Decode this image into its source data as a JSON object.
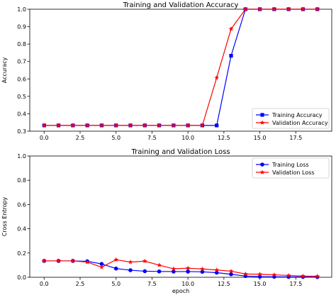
{
  "chart_data": [
    {
      "type": "line",
      "title": "Training and Validation Accuracy",
      "xlabel": "",
      "ylabel": "Accuracy",
      "xlim": [
        -1,
        20
      ],
      "ylim": [
        0.3,
        1.0
      ],
      "xticks": [
        0.0,
        2.5,
        5.0,
        7.5,
        10.0,
        12.5,
        15.0,
        17.5
      ],
      "xtick_labels": [
        "0.0",
        "2.5",
        "5.0",
        "7.5",
        "10.0",
        "12.5",
        "15.0",
        "17.5"
      ],
      "yticks": [
        0.3,
        0.4,
        0.5,
        0.6,
        0.7,
        0.8,
        0.9,
        1.0
      ],
      "ytick_labels": [
        "0.3",
        "0.4",
        "0.5",
        "0.6",
        "0.7",
        "0.8",
        "0.9",
        "1.0"
      ],
      "legend_position": "lower-right",
      "grid": false,
      "x": [
        0,
        1,
        2,
        3,
        4,
        5,
        6,
        7,
        8,
        9,
        10,
        11,
        12,
        13,
        14,
        15,
        16,
        17,
        18,
        19
      ],
      "series": [
        {
          "name": "Training Accuracy",
          "color": "#0000ff",
          "marker": "square",
          "values": [
            0.333,
            0.333,
            0.333,
            0.333,
            0.333,
            0.333,
            0.333,
            0.333,
            0.333,
            0.333,
            0.333,
            0.333,
            0.333,
            0.733,
            1.0,
            1.0,
            1.0,
            1.0,
            1.0,
            1.0
          ]
        },
        {
          "name": "Validation Accuracy",
          "color": "#ff0000",
          "marker": "star",
          "values": [
            0.333,
            0.333,
            0.333,
            0.333,
            0.333,
            0.333,
            0.333,
            0.333,
            0.333,
            0.333,
            0.333,
            0.333,
            0.607,
            0.887,
            1.0,
            1.0,
            1.0,
            1.0,
            1.0,
            1.0
          ]
        }
      ]
    },
    {
      "type": "line",
      "title": "Training and Validation Loss",
      "xlabel": "epoch",
      "ylabel": "Cross Entropy",
      "xlim": [
        -1,
        20
      ],
      "ylim": [
        0.0,
        1.0
      ],
      "xticks": [
        0.0,
        2.5,
        5.0,
        7.5,
        10.0,
        12.5,
        15.0,
        17.5
      ],
      "xtick_labels": [
        "0.0",
        "2.5",
        "5.0",
        "7.5",
        "10.0",
        "12.5",
        "15.0",
        "17.5"
      ],
      "yticks": [
        0.0,
        0.2,
        0.4,
        0.6,
        0.8,
        1.0
      ],
      "ytick_labels": [
        "0.0",
        "0.2",
        "0.4",
        "0.6",
        "0.8",
        "1.0"
      ],
      "legend_position": "upper-right",
      "grid": false,
      "x": [
        0,
        1,
        2,
        3,
        4,
        5,
        6,
        7,
        8,
        9,
        10,
        11,
        12,
        13,
        14,
        15,
        16,
        17,
        18,
        19
      ],
      "series": [
        {
          "name": "Training Loss",
          "color": "#0000ff",
          "marker": "circle",
          "values": [
            0.135,
            0.135,
            0.135,
            0.132,
            0.11,
            0.072,
            0.058,
            0.05,
            0.048,
            0.047,
            0.047,
            0.045,
            0.038,
            0.025,
            0.01,
            0.005,
            0.004,
            0.003,
            0.003,
            0.002
          ]
        },
        {
          "name": "Validation Loss",
          "color": "#ff0000",
          "marker": "star",
          "values": [
            0.135,
            0.135,
            0.135,
            0.125,
            0.083,
            0.145,
            0.125,
            0.133,
            0.1,
            0.07,
            0.075,
            0.068,
            0.06,
            0.05,
            0.027,
            0.025,
            0.02,
            0.015,
            0.01,
            0.008
          ]
        }
      ]
    }
  ]
}
